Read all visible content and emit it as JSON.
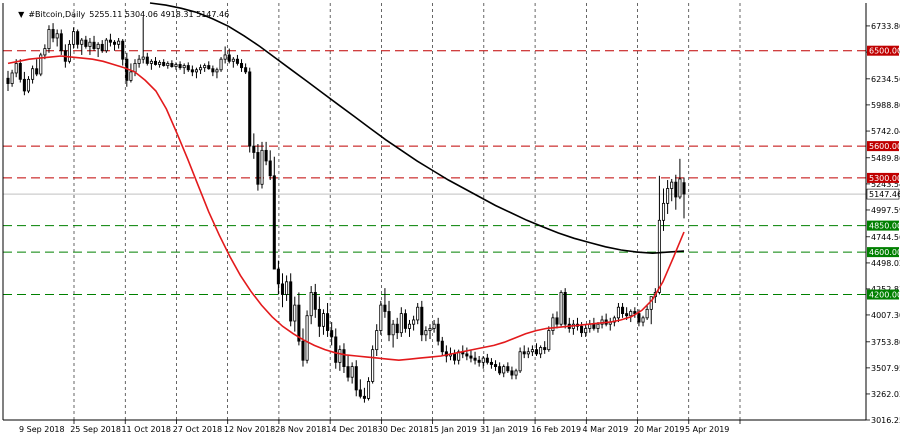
{
  "header": {
    "symbol": "#Bitcoin,Daily",
    "ohlc": "5255.11 5304.06 4918.31 5147.46"
  },
  "colors": {
    "candle": "#000000",
    "ema_fast": "#e31a1c",
    "ma_slow": "#000000",
    "resistance": "#c00000",
    "support": "#008000",
    "grid": "#000000",
    "price_marker": "#ffffff"
  },
  "chart_data": {
    "type": "candlestick",
    "title": "#Bitcoin,Daily",
    "x_axis": {
      "ticks": [
        "9 Sep 2018",
        "25 Sep 2018",
        "11 Oct 2018",
        "27 Oct 2018",
        "12 Nov 2018",
        "28 Nov 2018",
        "14 Dec 2018",
        "30 Dec 2018",
        "15 Jan 2019",
        "31 Jan 2019",
        "16 Feb 2019",
        "4 Mar 2019",
        "20 Mar 2019",
        "5 Apr 2019"
      ],
      "range": [
        "2018-09-09",
        "2019-04-11"
      ]
    },
    "y_axis": {
      "ticks": [
        6733.8,
        6486.86,
        6234.56,
        5988.8,
        5742.04,
        5489.86,
        5243.54,
        4997.59,
        4744.56,
        4498.02,
        4252.83,
        4007.3,
        3753.8,
        3507.95,
        3262.03,
        3016.25
      ],
      "range": [
        3016.25,
        6950
      ],
      "grid": "dashed-vertical"
    },
    "horizontal_levels": [
      {
        "label": "6500.00",
        "value": 6500,
        "color": "#c00000"
      },
      {
        "label": "5600.00",
        "value": 5600,
        "color": "#c00000"
      },
      {
        "label": "5300.00",
        "value": 5300,
        "color": "#c00000"
      },
      {
        "label": "4850.00",
        "value": 4850,
        "color": "#008000"
      },
      {
        "label": "4600.00",
        "value": 4600,
        "color": "#008000"
      },
      {
        "label": "4200.00",
        "value": 4200,
        "color": "#008000"
      }
    ],
    "current_price": {
      "label": "5147.46",
      "value": 5147.46
    },
    "ohlc_last": {
      "open": 5255.11,
      "high": 5304.06,
      "low": 4918.31,
      "close": 5147.46
    },
    "series": [
      {
        "type": "candles",
        "values": [
          [
            6240,
            6310,
            6120,
            6190
          ],
          [
            6190,
            6320,
            6160,
            6290
          ],
          [
            6290,
            6420,
            6250,
            6380
          ],
          [
            6380,
            6420,
            6200,
            6230
          ],
          [
            6230,
            6300,
            6080,
            6120
          ],
          [
            6120,
            6260,
            6100,
            6230
          ],
          [
            6230,
            6360,
            6190,
            6330
          ],
          [
            6330,
            6420,
            6260,
            6280
          ],
          [
            6280,
            6480,
            6260,
            6460
          ],
          [
            6460,
            6560,
            6420,
            6520
          ],
          [
            6520,
            6740,
            6480,
            6700
          ],
          [
            6700,
            6760,
            6580,
            6620
          ],
          [
            6620,
            6700,
            6540,
            6660
          ],
          [
            6660,
            6700,
            6460,
            6500
          ],
          [
            6500,
            6560,
            6340,
            6400
          ],
          [
            6400,
            6600,
            6380,
            6560
          ],
          [
            6560,
            6720,
            6520,
            6680
          ],
          [
            6680,
            6700,
            6520,
            6560
          ],
          [
            6560,
            6620,
            6460,
            6600
          ],
          [
            6600,
            6640,
            6520,
            6540
          ],
          [
            6540,
            6620,
            6460,
            6580
          ],
          [
            6580,
            6640,
            6500,
            6520
          ],
          [
            6520,
            6580,
            6440,
            6560
          ],
          [
            6560,
            6600,
            6480,
            6500
          ],
          [
            6500,
            6620,
            6480,
            6600
          ],
          [
            6600,
            6660,
            6540,
            6580
          ],
          [
            6580,
            6600,
            6500,
            6560
          ],
          [
            6560,
            6620,
            6520,
            6590
          ],
          [
            6590,
            6610,
            6360,
            6420
          ],
          [
            6420,
            6480,
            6160,
            6220
          ],
          [
            6220,
            6380,
            6200,
            6300
          ],
          [
            6300,
            6420,
            6260,
            6380
          ],
          [
            6380,
            6460,
            6340,
            6420
          ],
          [
            6420,
            6820,
            6380,
            6440
          ],
          [
            6440,
            6480,
            6360,
            6380
          ],
          [
            6380,
            6420,
            6320,
            6400
          ],
          [
            6400,
            6440,
            6360,
            6370
          ],
          [
            6370,
            6410,
            6340,
            6390
          ],
          [
            6390,
            6420,
            6350,
            6360
          ],
          [
            6360,
            6400,
            6330,
            6380
          ],
          [
            6380,
            6410,
            6340,
            6350
          ],
          [
            6350,
            6390,
            6320,
            6370
          ],
          [
            6370,
            6400,
            6320,
            6340
          ],
          [
            6340,
            6380,
            6280,
            6360
          ],
          [
            6360,
            6390,
            6300,
            6320
          ],
          [
            6320,
            6360,
            6260,
            6300
          ],
          [
            6300,
            6340,
            6240,
            6320
          ],
          [
            6320,
            6370,
            6280,
            6340
          ],
          [
            6340,
            6380,
            6300,
            6360
          ],
          [
            6360,
            6400,
            6320,
            6330
          ],
          [
            6330,
            6360,
            6260,
            6300
          ],
          [
            6300,
            6340,
            6240,
            6320
          ],
          [
            6320,
            6440,
            6300,
            6420
          ],
          [
            6420,
            6540,
            6380,
            6460
          ],
          [
            6460,
            6520,
            6380,
            6400
          ],
          [
            6400,
            6440,
            6340,
            6420
          ],
          [
            6420,
            6460,
            6360,
            6380
          ],
          [
            6380,
            6420,
            6300,
            6340
          ],
          [
            6340,
            6380,
            6280,
            6300
          ],
          [
            6300,
            6340,
            5540,
            5600
          ],
          [
            5600,
            5720,
            5480,
            5540
          ],
          [
            5540,
            5620,
            5180,
            5240
          ],
          [
            5240,
            5640,
            5200,
            5560
          ],
          [
            5560,
            5640,
            5420,
            5460
          ],
          [
            5460,
            5560,
            5280,
            5320
          ],
          [
            5320,
            5500,
            4900,
            4440
          ],
          [
            4440,
            4520,
            4200,
            4300
          ],
          [
            4300,
            4400,
            4080,
            4200
          ],
          [
            4200,
            4380,
            4140,
            4320
          ],
          [
            4320,
            4400,
            3900,
            3950
          ],
          [
            3950,
            4180,
            3850,
            4100
          ],
          [
            4100,
            4220,
            3720,
            3760
          ],
          [
            3760,
            3880,
            3520,
            3580
          ],
          [
            3580,
            4050,
            3550,
            4000
          ],
          [
            4000,
            4280,
            3920,
            4220
          ],
          [
            4220,
            4300,
            3980,
            4060
          ],
          [
            4060,
            4180,
            3800,
            3900
          ],
          [
            3900,
            4060,
            3820,
            4020
          ],
          [
            4020,
            4120,
            3800,
            3860
          ],
          [
            3860,
            3940,
            3720,
            3800
          ],
          [
            3800,
            3880,
            3500,
            3560
          ],
          [
            3560,
            3720,
            3480,
            3680
          ],
          [
            3680,
            3740,
            3460,
            3520
          ],
          [
            3520,
            3620,
            3380,
            3420
          ],
          [
            3420,
            3560,
            3360,
            3520
          ],
          [
            3520,
            3580,
            3240,
            3300
          ],
          [
            3300,
            3400,
            3220,
            3240
          ],
          [
            3240,
            3320,
            3180,
            3220
          ],
          [
            3220,
            3420,
            3200,
            3380
          ],
          [
            3380,
            3720,
            3360,
            3680
          ],
          [
            3680,
            3920,
            3620,
            3860
          ],
          [
            3860,
            4140,
            3820,
            4100
          ],
          [
            4100,
            4260,
            3980,
            4040
          ],
          [
            4040,
            4140,
            3760,
            3820
          ],
          [
            3820,
            3960,
            3700,
            3920
          ],
          [
            3920,
            3980,
            3780,
            3840
          ],
          [
            3840,
            4080,
            3800,
            4020
          ],
          [
            4020,
            4060,
            3840,
            3880
          ],
          [
            3880,
            3960,
            3800,
            3920
          ],
          [
            3920,
            4000,
            3860,
            3960
          ],
          [
            3960,
            4120,
            3920,
            4080
          ],
          [
            4080,
            4140,
            3760,
            3820
          ],
          [
            3820,
            3900,
            3760,
            3860
          ],
          [
            3860,
            3920,
            3780,
            3880
          ],
          [
            3880,
            3960,
            3840,
            3920
          ],
          [
            3920,
            3980,
            3720,
            3760
          ],
          [
            3760,
            3800,
            3620,
            3660
          ],
          [
            3660,
            3720,
            3560,
            3620
          ],
          [
            3620,
            3700,
            3580,
            3640
          ],
          [
            3640,
            3680,
            3540,
            3580
          ],
          [
            3580,
            3680,
            3540,
            3660
          ],
          [
            3660,
            3720,
            3600,
            3640
          ],
          [
            3640,
            3700,
            3580,
            3620
          ],
          [
            3620,
            3680,
            3560,
            3600
          ],
          [
            3600,
            3660,
            3540,
            3580
          ],
          [
            3580,
            3620,
            3520,
            3560
          ],
          [
            3560,
            3620,
            3500,
            3600
          ],
          [
            3600,
            3640,
            3540,
            3560
          ],
          [
            3560,
            3600,
            3500,
            3540
          ],
          [
            3540,
            3580,
            3480,
            3520
          ],
          [
            3520,
            3560,
            3440,
            3460
          ],
          [
            3460,
            3540,
            3420,
            3520
          ],
          [
            3520,
            3560,
            3460,
            3480
          ],
          [
            3480,
            3520,
            3400,
            3440
          ],
          [
            3440,
            3500,
            3400,
            3480
          ],
          [
            3480,
            3700,
            3460,
            3660
          ],
          [
            3660,
            3720,
            3600,
            3640
          ],
          [
            3640,
            3700,
            3600,
            3660
          ],
          [
            3660,
            3720,
            3620,
            3680
          ],
          [
            3680,
            3740,
            3620,
            3640
          ],
          [
            3640,
            3720,
            3600,
            3700
          ],
          [
            3700,
            3760,
            3640,
            3680
          ],
          [
            3680,
            3900,
            3660,
            3860
          ],
          [
            3860,
            4020,
            3820,
            3980
          ],
          [
            3980,
            4040,
            3880,
            3920
          ],
          [
            3920,
            4240,
            3900,
            4220
          ],
          [
            4220,
            4260,
            3880,
            3920
          ],
          [
            3920,
            3980,
            3840,
            3880
          ],
          [
            3880,
            3960,
            3820,
            3920
          ],
          [
            3920,
            3980,
            3860,
            3900
          ],
          [
            3900,
            3940,
            3800,
            3840
          ],
          [
            3840,
            3920,
            3800,
            3880
          ],
          [
            3880,
            3960,
            3840,
            3920
          ],
          [
            3920,
            3980,
            3860,
            3880
          ],
          [
            3880,
            3940,
            3840,
            3920
          ],
          [
            3920,
            4000,
            3880,
            3960
          ],
          [
            3960,
            4020,
            3900,
            3920
          ],
          [
            3920,
            3980,
            3860,
            3940
          ],
          [
            3940,
            4000,
            3900,
            3980
          ],
          [
            3980,
            4120,
            3940,
            4080
          ],
          [
            4080,
            4120,
            3980,
            4020
          ],
          [
            4020,
            4080,
            3960,
            4000
          ],
          [
            4000,
            4060,
            3940,
            4040
          ],
          [
            4040,
            4080,
            3980,
            4020
          ],
          [
            4020,
            4060,
            3900,
            3940
          ],
          [
            3940,
            4000,
            3900,
            3980
          ],
          [
            3980,
            4100,
            3960,
            4060
          ],
          [
            4060,
            4120,
            3920,
            4180
          ],
          [
            4180,
            4260,
            4120,
            4220
          ],
          [
            4220,
            5320,
            4200,
            4900
          ],
          [
            4900,
            5200,
            4800,
            5060
          ],
          [
            5060,
            5280,
            4960,
            5200
          ],
          [
            5200,
            5290,
            5080,
            5260
          ],
          [
            5260,
            5330,
            5000,
            5120
          ],
          [
            5120,
            5480,
            5100,
            5290
          ],
          [
            5255.11,
            5304.06,
            4918.31,
            5147.46
          ]
        ]
      },
      {
        "type": "line",
        "values": [
          6380,
          6400,
          6420,
          6430,
          6440,
          6450,
          6440,
          6430,
          6420,
          6400,
          6370,
          6340,
          6300,
          6220,
          6120,
          5950,
          5720,
          5480,
          5230,
          4980,
          4760,
          4560,
          4380,
          4230,
          4100,
          3990,
          3900,
          3830,
          3770,
          3720,
          3680,
          3650,
          3630,
          3620,
          3610,
          3600,
          3590,
          3580,
          3590,
          3600,
          3610,
          3620,
          3640,
          3660,
          3680,
          3700,
          3720,
          3750,
          3790,
          3830,
          3860,
          3880,
          3890,
          3900,
          3910,
          3920,
          3930,
          3940,
          3960,
          3990,
          4050,
          4150,
          4320,
          4550,
          4790
        ]
      },
      {
        "type": "line",
        "values": [
          6950,
          6930,
          6900,
          6860,
          6800,
          6730,
          6640,
          6540,
          6430,
          6320,
          6210,
          6100,
          5990,
          5880,
          5770,
          5660,
          5560,
          5460,
          5370,
          5280,
          5200,
          5120,
          5040,
          4970,
          4900,
          4840,
          4780,
          4730,
          4690,
          4650,
          4620,
          4600,
          4590,
          4600,
          4610
        ]
      }
    ]
  }
}
